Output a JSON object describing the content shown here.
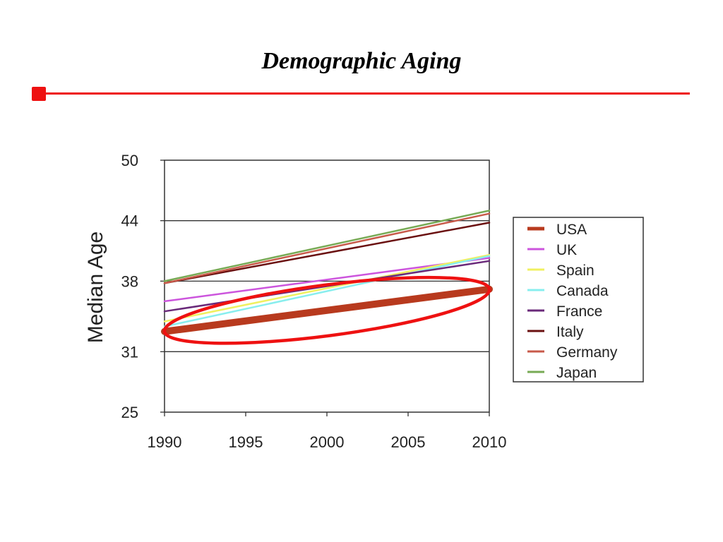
{
  "slide": {
    "title": "Demographic Aging",
    "accent_color": "#ee1111"
  },
  "chart_data": {
    "type": "line",
    "title": "",
    "xlabel": "",
    "ylabel": "Median Age",
    "xlim": [
      1990,
      2010
    ],
    "ylim": [
      25,
      50
    ],
    "x_ticks": [
      "1990",
      "1995",
      "2000",
      "2005",
      "2010"
    ],
    "y_ticks": [
      "50",
      "44",
      "38",
      "31",
      "25"
    ],
    "y_tick_values": [
      50,
      44,
      38,
      31,
      25
    ],
    "gridlines_y": [
      44,
      38,
      31
    ],
    "legend_position": "right",
    "x": [
      1990,
      2010
    ],
    "series": [
      {
        "name": "USA",
        "color": "#b83a1e",
        "values": [
          33.0,
          37.2
        ],
        "emphasis": true
      },
      {
        "name": "UK",
        "color": "#cc55dd",
        "values": [
          36.0,
          40.3
        ]
      },
      {
        "name": "Spain",
        "color": "#f0f060",
        "values": [
          34.0,
          40.6
        ]
      },
      {
        "name": "Canada",
        "color": "#88eeee",
        "values": [
          33.5,
          40.5
        ]
      },
      {
        "name": "France",
        "color": "#6a2a7a",
        "values": [
          35.0,
          40.0
        ]
      },
      {
        "name": "Italy",
        "color": "#6a1010",
        "values": [
          37.8,
          43.8
        ]
      },
      {
        "name": "Germany",
        "color": "#c85a4a",
        "values": [
          37.8,
          44.7
        ]
      },
      {
        "name": "Japan",
        "color": "#77aa55",
        "values": [
          38.0,
          45.0
        ]
      }
    ],
    "annotation": {
      "type": "ellipse",
      "color": "#ee1111",
      "highlights": "USA"
    }
  }
}
